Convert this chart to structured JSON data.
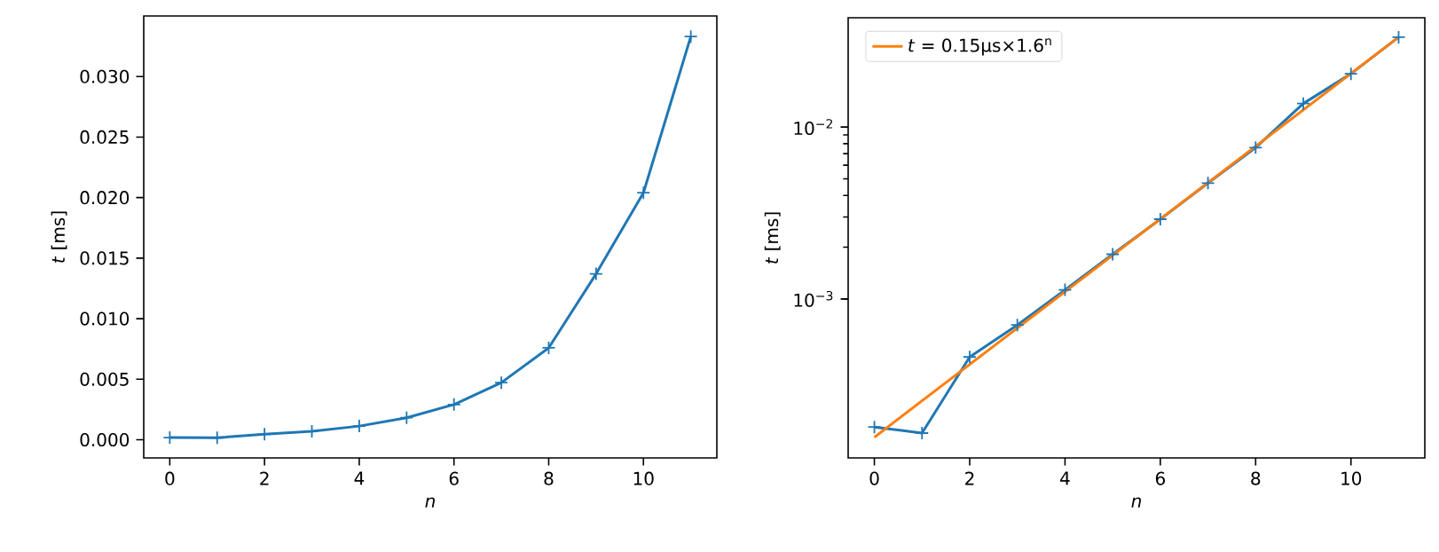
{
  "chart_data": [
    {
      "type": "line",
      "xlabel": "*n*",
      "ylabel": "*t* [ms]",
      "marker": "cross",
      "legend": false,
      "xlim": [
        -0.55,
        11.55
      ],
      "ylim": [
        -0.0015,
        0.035
      ],
      "xticks": [
        0,
        2,
        4,
        6,
        8,
        10
      ],
      "yticks": [
        {
          "value": 0,
          "label": "0.000"
        },
        {
          "value": 0.005,
          "label": "0.005"
        },
        {
          "value": 0.01,
          "label": "0.010"
        },
        {
          "value": 0.015,
          "label": "0.015"
        },
        {
          "value": 0.02,
          "label": "0.020"
        },
        {
          "value": 0.025,
          "label": "0.025"
        },
        {
          "value": 0.03,
          "label": "0.030"
        }
      ],
      "x": [
        0,
        1,
        2,
        3,
        4,
        5,
        6,
        7,
        8,
        9,
        10,
        11
      ],
      "series": [
        {
          "color": "#1f77b4",
          "values": [
            0.00018,
            0.000166,
            0.00046,
            0.000706,
            0.00113,
            0.00182,
            0.00291,
            0.00472,
            0.00759,
            0.0137,
            0.0204,
            0.0333
          ]
        }
      ]
    },
    {
      "type": "line",
      "xlabel": "*n*",
      "ylabel": "*t* [ms]",
      "log": "y",
      "legend": "top left",
      "xlim": [
        -0.55,
        11.55
      ],
      "ylim": [
        0.000119,
        0.0432
      ],
      "xticks": [
        0,
        2,
        4,
        6,
        8,
        10
      ],
      "yticks": [
        {
          "value": 0.001,
          "label": "10$^{−3}$"
        },
        {
          "value": 0.01,
          "label": "10$^{−2}$"
        }
      ],
      "x": [
        0,
        1,
        2,
        3,
        4,
        5,
        6,
        7,
        8,
        9,
        10,
        11
      ],
      "series": [
        {
          "color": "#1f77b4",
          "marker": "cross",
          "values": [
            0.00018,
            0.000166,
            0.00046,
            0.000706,
            0.00113,
            0.00182,
            0.00291,
            0.00472,
            0.00759,
            0.0137,
            0.0204,
            0.0333
          ]
        },
        {
          "name": "*t* = 0.15μs×1.6$^{n}$",
          "color": "#ff7f0e",
          "marker": "none",
          "x": [
            0,
            11
          ],
          "values": [
            0.000157,
            0.0333
          ]
        }
      ]
    }
  ]
}
